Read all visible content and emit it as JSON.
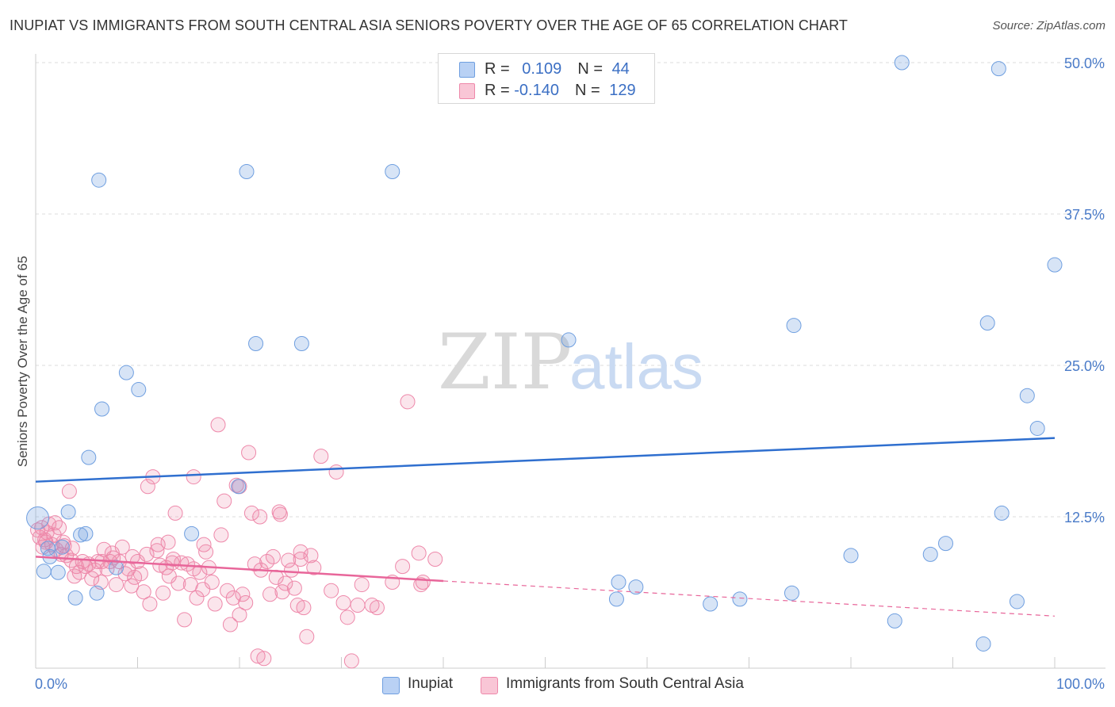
{
  "header": {
    "title": "INUPIAT VS IMMIGRANTS FROM SOUTH CENTRAL ASIA SENIORS POVERTY OVER THE AGE OF 65 CORRELATION CHART",
    "source": "Source: ZipAtlas.com"
  },
  "watermark": {
    "zip": "ZIP",
    "atlas": "atlas"
  },
  "legend": {
    "rows": [
      {
        "r_label": "R = ",
        "r_value": "0.109",
        "n_label": "N = ",
        "n_value": "44"
      },
      {
        "r_label": "R = ",
        "r_value": "-0.140",
        "n_label": "N = ",
        "n_value": "129"
      }
    ]
  },
  "chart_data": {
    "type": "scatter",
    "title": "INUPIAT VS IMMIGRANTS FROM SOUTH CENTRAL ASIA SENIORS POVERTY OVER THE AGE OF 65 CORRELATION CHART",
    "xlabel": "",
    "ylabel": "Seniors Poverty Over the Age of 65",
    "xlim": [
      0,
      100
    ],
    "ylim": [
      0,
      50
    ],
    "x_tick_labels": [
      "0.0%",
      "100.0%"
    ],
    "y_tick_labels": [
      "12.5%",
      "25.0%",
      "37.5%",
      "50.0%"
    ],
    "y_ticks": [
      12.5,
      25.0,
      37.5,
      50.0
    ],
    "colors": {
      "inupiat": "#6f9fe0",
      "immigrants": "#ee88aa",
      "inupiat_line": "#2f6fcf",
      "immigrants_line": "#e8669a"
    },
    "series": [
      {
        "name": "Inupiat",
        "R": 0.109,
        "N": 44,
        "trend": {
          "x0": 0,
          "y0": 15.4,
          "x1": 100,
          "y1": 19.0
        },
        "points": [
          [
            0.2,
            12.4
          ],
          [
            0.8,
            8.0
          ],
          [
            1.4,
            9.2
          ],
          [
            1.2,
            9.9
          ],
          [
            2.2,
            7.9
          ],
          [
            2.6,
            10.0
          ],
          [
            3.2,
            12.9
          ],
          [
            3.9,
            5.8
          ],
          [
            4.4,
            11.0
          ],
          [
            4.9,
            11.1
          ],
          [
            5.2,
            17.4
          ],
          [
            6.0,
            6.2
          ],
          [
            6.2,
            40.3
          ],
          [
            6.5,
            21.4
          ],
          [
            7.9,
            8.3
          ],
          [
            8.9,
            24.4
          ],
          [
            10.1,
            23.0
          ],
          [
            15.3,
            11.1
          ],
          [
            19.9,
            15.0
          ],
          [
            20.7,
            41.0
          ],
          [
            21.6,
            26.8
          ],
          [
            26.1,
            26.8
          ],
          [
            35.0,
            41.0
          ],
          [
            52.3,
            27.1
          ],
          [
            57.0,
            5.7
          ],
          [
            57.2,
            7.1
          ],
          [
            58.9,
            6.7
          ],
          [
            66.2,
            5.3
          ],
          [
            69.1,
            5.7
          ],
          [
            74.2,
            6.2
          ],
          [
            74.4,
            28.3
          ],
          [
            80.0,
            9.3
          ],
          [
            84.3,
            3.9
          ],
          [
            85.0,
            50.0
          ],
          [
            87.8,
            9.4
          ],
          [
            89.3,
            10.3
          ],
          [
            93.0,
            2.0
          ],
          [
            93.4,
            28.5
          ],
          [
            94.5,
            49.5
          ],
          [
            94.8,
            12.8
          ],
          [
            96.3,
            5.5
          ],
          [
            97.3,
            22.5
          ],
          [
            98.3,
            19.8
          ],
          [
            100.0,
            33.3
          ]
        ]
      },
      {
        "name": "Immigrants from South Central Asia",
        "R": -0.14,
        "N": 129,
        "trend": {
          "x0": 0,
          "y0": 9.2,
          "x1": 40,
          "y1": 7.2
        },
        "trend_dashed": {
          "x0": 40,
          "y0": 7.2,
          "x1": 100,
          "y1": 4.3
        },
        "points": [
          [
            0.2,
            11.4
          ],
          [
            0.4,
            10.8
          ],
          [
            0.6,
            11.6
          ],
          [
            0.9,
            10.6
          ],
          [
            1.1,
            11.2
          ],
          [
            1.3,
            11.9
          ],
          [
            1.6,
            10.2
          ],
          [
            1.8,
            11.0
          ],
          [
            2.0,
            9.8
          ],
          [
            2.3,
            11.6
          ],
          [
            2.5,
            9.4
          ],
          [
            2.8,
            10.1
          ],
          [
            3.0,
            9.3
          ],
          [
            3.3,
            14.6
          ],
          [
            3.5,
            8.9
          ],
          [
            3.8,
            7.6
          ],
          [
            4.0,
            8.4
          ],
          [
            4.3,
            7.9
          ],
          [
            4.6,
            8.8
          ],
          [
            4.9,
            8.4
          ],
          [
            5.2,
            8.6
          ],
          [
            5.5,
            7.4
          ],
          [
            5.8,
            8.1
          ],
          [
            6.1,
            8.8
          ],
          [
            6.4,
            7.1
          ],
          [
            6.7,
            9.8
          ],
          [
            7.0,
            8.2
          ],
          [
            7.3,
            8.8
          ],
          [
            7.6,
            9.1
          ],
          [
            7.9,
            6.9
          ],
          [
            8.2,
            8.8
          ],
          [
            8.5,
            10.0
          ],
          [
            8.8,
            7.8
          ],
          [
            9.1,
            8.2
          ],
          [
            9.4,
            6.8
          ],
          [
            9.7,
            7.5
          ],
          [
            10.0,
            8.8
          ],
          [
            10.3,
            7.8
          ],
          [
            10.6,
            6.3
          ],
          [
            10.9,
            9.4
          ],
          [
            11.2,
            5.3
          ],
          [
            11.5,
            15.8
          ],
          [
            11.9,
            9.7
          ],
          [
            12.2,
            8.5
          ],
          [
            12.5,
            6.2
          ],
          [
            12.8,
            8.3
          ],
          [
            13.1,
            7.6
          ],
          [
            13.4,
            8.7
          ],
          [
            13.7,
            12.8
          ],
          [
            14.0,
            7.0
          ],
          [
            14.3,
            8.7
          ],
          [
            14.6,
            4.0
          ],
          [
            14.9,
            8.6
          ],
          [
            15.2,
            6.9
          ],
          [
            15.5,
            8.2
          ],
          [
            15.8,
            5.8
          ],
          [
            16.1,
            7.9
          ],
          [
            16.4,
            6.5
          ],
          [
            16.7,
            9.6
          ],
          [
            17.0,
            8.3
          ],
          [
            17.3,
            7.1
          ],
          [
            17.6,
            5.3
          ],
          [
            17.9,
            20.1
          ],
          [
            18.2,
            11.0
          ],
          [
            18.5,
            13.8
          ],
          [
            18.8,
            6.4
          ],
          [
            19.1,
            3.6
          ],
          [
            19.4,
            5.8
          ],
          [
            19.7,
            15.1
          ],
          [
            20.0,
            4.4
          ],
          [
            20.3,
            6.1
          ],
          [
            20.6,
            5.4
          ],
          [
            20.9,
            17.8
          ],
          [
            21.2,
            12.8
          ],
          [
            21.5,
            8.6
          ],
          [
            21.8,
            1.0
          ],
          [
            22.1,
            8.1
          ],
          [
            22.4,
            0.8
          ],
          [
            22.7,
            8.8
          ],
          [
            23.0,
            6.1
          ],
          [
            23.3,
            9.2
          ],
          [
            23.6,
            7.5
          ],
          [
            23.9,
            12.9
          ],
          [
            24.2,
            6.3
          ],
          [
            24.5,
            7.0
          ],
          [
            24.8,
            8.9
          ],
          [
            25.1,
            8.1
          ],
          [
            25.4,
            6.6
          ],
          [
            25.7,
            5.2
          ],
          [
            26.0,
            9.6
          ],
          [
            26.3,
            5.0
          ],
          [
            26.6,
            2.6
          ],
          [
            27.0,
            9.3
          ],
          [
            27.3,
            8.3
          ],
          [
            28.0,
            17.5
          ],
          [
            29.0,
            6.4
          ],
          [
            29.5,
            16.2
          ],
          [
            30.2,
            5.4
          ],
          [
            30.6,
            4.2
          ],
          [
            31.0,
            0.6
          ],
          [
            31.6,
            5.2
          ],
          [
            32.0,
            6.9
          ],
          [
            33.0,
            5.2
          ],
          [
            33.5,
            5.0
          ],
          [
            35.0,
            7.1
          ],
          [
            36.0,
            8.4
          ],
          [
            36.5,
            22.0
          ],
          [
            37.6,
            9.5
          ],
          [
            37.8,
            6.9
          ],
          [
            38.0,
            7.1
          ],
          [
            39.2,
            9.0
          ],
          [
            22.0,
            12.5
          ],
          [
            11.0,
            15.0
          ],
          [
            13.0,
            10.4
          ],
          [
            15.5,
            15.8
          ],
          [
            20.0,
            15.0
          ],
          [
            24.0,
            12.7
          ],
          [
            12.0,
            10.2
          ],
          [
            9.5,
            9.2
          ],
          [
            7.5,
            9.5
          ],
          [
            6.5,
            8.8
          ],
          [
            3.6,
            9.9
          ],
          [
            2.7,
            10.4
          ],
          [
            1.9,
            12.0
          ],
          [
            0.7,
            10.0
          ],
          [
            1.0,
            10.4
          ],
          [
            16.5,
            10.2
          ],
          [
            26.0,
            9.0
          ],
          [
            13.5,
            9.0
          ]
        ]
      }
    ]
  },
  "bottom_legend": {
    "items": [
      {
        "label": "Inupiat"
      },
      {
        "label": "Immigrants from South Central Asia"
      }
    ]
  }
}
